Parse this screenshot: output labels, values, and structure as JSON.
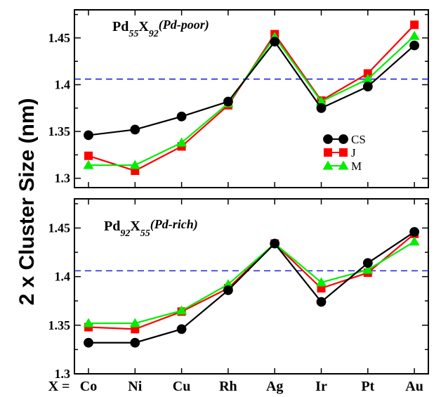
{
  "ylabel": "2 x Cluster Size (nm)",
  "x_axis_prefix": "X =",
  "chart_data": [
    {
      "type": "line",
      "title": {
        "p1": "Pd",
        "s1": "55",
        "p2": "X",
        "s2": "92",
        "p3": "(Pd-poor)"
      },
      "categories": [
        "Co",
        "Ni",
        "Cu",
        "Rh",
        "Ag",
        "Ir",
        "Pt",
        "Au"
      ],
      "ylim": [
        1.29,
        1.48
      ],
      "yticks": [
        "1.3",
        "1.35",
        "1.4",
        "1.45"
      ],
      "reference_line": 1.406,
      "legend": "right",
      "series": [
        {
          "name": "CS",
          "color": "#000000",
          "marker": "circle",
          "values": [
            1.346,
            1.352,
            1.366,
            1.382,
            1.446,
            1.375,
            1.398,
            1.442
          ]
        },
        {
          "name": "J",
          "color": "#ff0000",
          "marker": "square",
          "values": [
            1.324,
            1.308,
            1.334,
            1.378,
            1.454,
            1.383,
            1.412,
            1.464
          ]
        },
        {
          "name": "M",
          "color": "#00ee00",
          "marker": "triangle",
          "values": [
            1.314,
            1.314,
            1.338,
            1.38,
            1.451,
            1.382,
            1.406,
            1.452
          ]
        }
      ]
    },
    {
      "type": "line",
      "title": {
        "p1": "Pd",
        "s1": "92",
        "p2": "X",
        "s2": "55",
        "p3": "(Pd-rich)"
      },
      "categories": [
        "Co",
        "Ni",
        "Cu",
        "Rh",
        "Ag",
        "Ir",
        "Pt",
        "Au"
      ],
      "ylim": [
        1.3,
        1.48
      ],
      "yticks": [
        "1.3",
        "1.35",
        "1.4",
        "1.45"
      ],
      "reference_line": 1.406,
      "series": [
        {
          "name": "CS",
          "color": "#000000",
          "marker": "circle",
          "values": [
            1.332,
            1.332,
            1.346,
            1.386,
            1.434,
            1.374,
            1.414,
            1.446
          ]
        },
        {
          "name": "J",
          "color": "#ff0000",
          "marker": "square",
          "values": [
            1.348,
            1.346,
            1.364,
            1.388,
            1.434,
            1.388,
            1.404,
            1.444
          ]
        },
        {
          "name": "M",
          "color": "#00ee00",
          "marker": "triangle",
          "values": [
            1.352,
            1.352,
            1.365,
            1.392,
            1.434,
            1.394,
            1.407,
            1.436
          ]
        }
      ]
    }
  ]
}
